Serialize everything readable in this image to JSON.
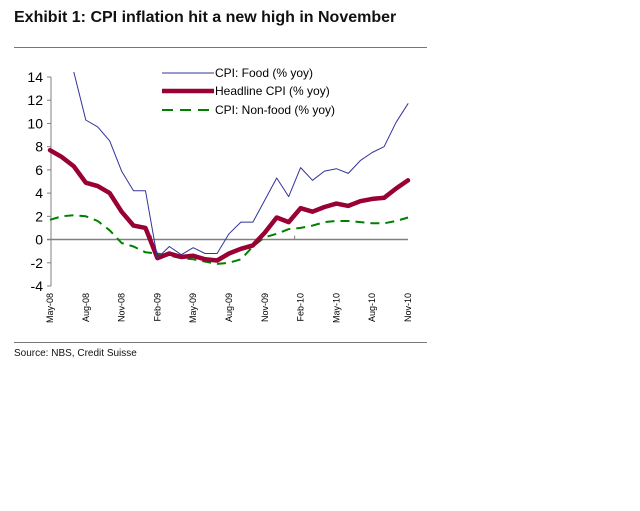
{
  "header": {
    "title": "Exhibit 1: CPI inflation hit a new high in November"
  },
  "footer": {
    "source": "Source: NBS, Credit Suisse"
  },
  "chart_data": {
    "type": "line",
    "title": "Exhibit 1: CPI inflation hit a new high in November",
    "xlabel": "",
    "ylabel": "",
    "ylim": [
      -4,
      14
    ],
    "yticks": [
      14,
      12,
      10,
      8,
      6,
      4,
      2,
      0,
      -2,
      -4
    ],
    "x": [
      "May-08",
      "Jun-08",
      "Jul-08",
      "Aug-08",
      "Sep-08",
      "Oct-08",
      "Nov-08",
      "Dec-08",
      "Jan-09",
      "Feb-09",
      "Mar-09",
      "Apr-09",
      "May-09",
      "Jun-09",
      "Jul-09",
      "Aug-09",
      "Sep-09",
      "Oct-09",
      "Nov-09",
      "Dec-09",
      "Jan-10",
      "Feb-10",
      "Mar-10",
      "Apr-10",
      "May-10",
      "Jun-10",
      "Jul-10",
      "Aug-10",
      "Sep-10",
      "Oct-10",
      "Nov-10"
    ],
    "xtick_labels": [
      "May-08",
      "Aug-08",
      "Nov-08",
      "Feb-09",
      "May-09",
      "Aug-09",
      "Nov-09",
      "Feb-10",
      "May-10",
      "Aug-10",
      "Nov-10"
    ],
    "grid": false,
    "legend_position": "top-center",
    "series": [
      {
        "name": "CPI: Food (% yoy)",
        "color": "#333399",
        "style": "thin",
        "values": [
          null,
          null,
          14.4,
          10.3,
          9.7,
          8.5,
          5.9,
          4.2,
          4.2,
          -1.6,
          -0.6,
          -1.3,
          -0.7,
          -1.2,
          -1.2,
          0.5,
          1.5,
          1.5,
          3.4,
          5.3,
          3.7,
          6.2,
          5.1,
          5.9,
          6.1,
          5.7,
          6.8,
          7.5,
          8.0,
          10.1,
          11.7
        ]
      },
      {
        "name": "Headline CPI (% yoy)",
        "color": "#990033",
        "style": "thick",
        "values": [
          7.7,
          7.1,
          6.3,
          4.9,
          4.6,
          4.0,
          2.4,
          1.2,
          1.0,
          -1.6,
          -1.2,
          -1.5,
          -1.4,
          -1.7,
          -1.8,
          -1.2,
          -0.8,
          -0.5,
          0.6,
          1.9,
          1.5,
          2.7,
          2.4,
          2.8,
          3.1,
          2.9,
          3.3,
          3.5,
          3.6,
          4.4,
          5.1
        ]
      },
      {
        "name": "CPI: Non-food (% yoy)",
        "color": "#008000",
        "style": "dashed",
        "values": [
          1.7,
          2.0,
          2.1,
          2.0,
          1.6,
          0.8,
          -0.3,
          -0.6,
          -1.1,
          -1.2,
          -1.4,
          -1.6,
          -1.7,
          -1.9,
          -2.1,
          -2.0,
          -1.7,
          -0.6,
          0.2,
          0.5,
          0.9,
          1.0,
          1.2,
          1.5,
          1.6,
          1.6,
          1.5,
          1.4,
          1.4,
          1.6,
          1.9
        ]
      }
    ]
  }
}
